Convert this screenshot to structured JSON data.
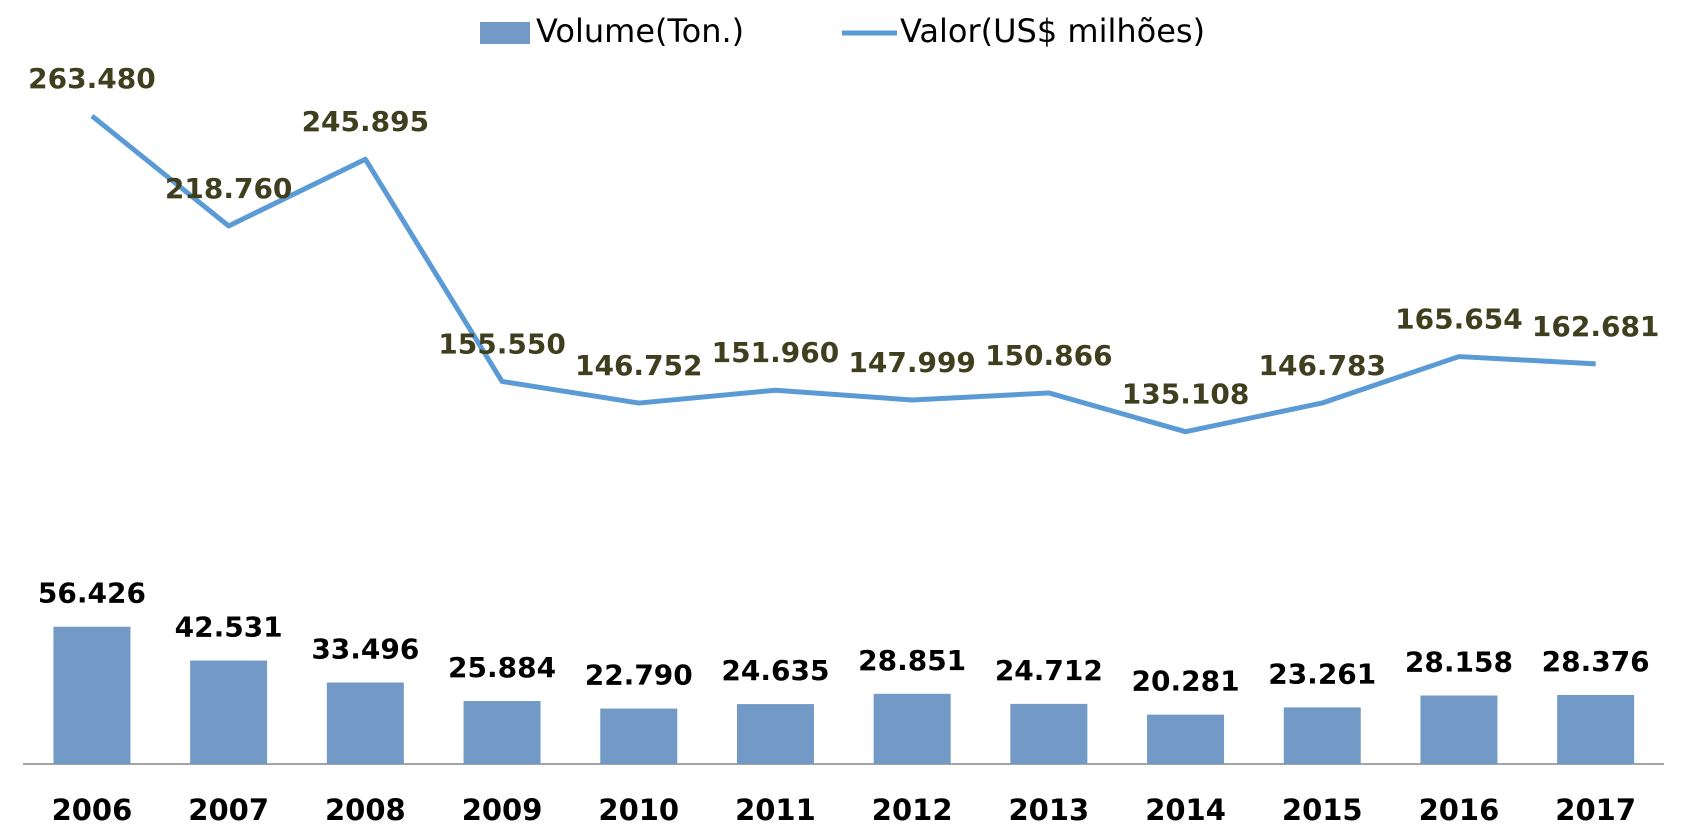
{
  "chart_data": {
    "type": "bar-line",
    "categories": [
      "2006",
      "2007",
      "2008",
      "2009",
      "2010",
      "2011",
      "2012",
      "2013",
      "2014",
      "2015",
      "2016",
      "2017"
    ],
    "series": [
      {
        "name": "Volume(Ton.)",
        "type": "bar",
        "color": "#7399c6",
        "values": [
          56426,
          42531,
          33496,
          25884,
          22790,
          24635,
          28851,
          24712,
          20281,
          23261,
          28158,
          28376
        ],
        "value_labels": [
          "56.426",
          "42.531",
          "33.496",
          "25.884",
          "22.790",
          "24.635",
          "28.851",
          "24.712",
          "20.281",
          "23.261",
          "28.158",
          "28.376"
        ],
        "label_color": "#000000"
      },
      {
        "name": "Valor(US$ milhões)",
        "type": "line",
        "axis": "y2",
        "color": "#5b9bd5",
        "values": [
          263480,
          218760,
          245895,
          155550,
          146752,
          151960,
          147999,
          150866,
          135108,
          146783,
          165654,
          162681
        ],
        "value_labels": [
          "263.480",
          "218.760",
          "245.895",
          "155.550",
          "146.752",
          "151.960",
          "147.999",
          "150.866",
          "135.108",
          "146.783",
          "165.654",
          "162.681"
        ],
        "label_color": "#3f3f1f"
      }
    ],
    "ylim": [
      0,
      275000
    ],
    "y2lim": [
      0,
      272000
    ],
    "legend": "top"
  }
}
